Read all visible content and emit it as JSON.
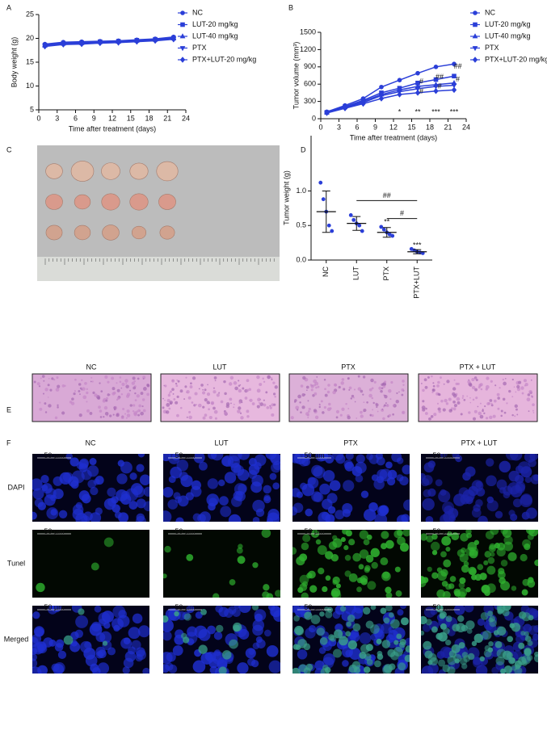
{
  "chart_data": [
    {
      "type": "line",
      "panel_label": "A",
      "xlabel": "Time after treatment (days)",
      "ylabel": "Body weight (g)",
      "xlim": [
        0,
        24
      ],
      "xticks": [
        0,
        3,
        6,
        9,
        12,
        15,
        18,
        21,
        24
      ],
      "ylim": [
        5,
        25
      ],
      "yticks": [
        5,
        10,
        15,
        20,
        25
      ],
      "x": [
        1,
        4,
        7,
        10,
        13,
        16,
        19,
        22
      ],
      "series": [
        {
          "name": "NC",
          "color": "#2b3fd8",
          "marker": "circle",
          "values": [
            18.8,
            19.2,
            19.3,
            19.4,
            19.5,
            19.7,
            19.9,
            20.3
          ]
        },
        {
          "name": "LUT-20 mg/kg",
          "color": "#2b3fd8",
          "marker": "square",
          "values": [
            18.6,
            19.0,
            19.1,
            19.3,
            19.4,
            19.6,
            19.8,
            20.1
          ]
        },
        {
          "name": "LUT-40 mg/kg",
          "color": "#2b3fd8",
          "marker": "triangle-up",
          "values": [
            18.5,
            18.9,
            19.0,
            19.2,
            19.3,
            19.5,
            19.7,
            20.0
          ]
        },
        {
          "name": "PTX",
          "color": "#2b3fd8",
          "marker": "triangle-down",
          "values": [
            18.4,
            18.8,
            18.9,
            19.1,
            19.2,
            19.4,
            19.6,
            19.9
          ]
        },
        {
          "name": "PTX+LUT-20 mg/kg",
          "color": "#2b3fd8",
          "marker": "diamond",
          "values": [
            18.3,
            18.7,
            18.8,
            19.0,
            19.1,
            19.3,
            19.5,
            19.8
          ]
        }
      ]
    },
    {
      "type": "line",
      "panel_label": "B",
      "xlabel": "Time after treatment (days)",
      "ylabel": "Tumor volume (mm³)",
      "xlim": [
        0,
        24
      ],
      "xticks": [
        0,
        3,
        6,
        9,
        12,
        15,
        18,
        21,
        24
      ],
      "ylim": [
        0,
        1500
      ],
      "yticks": [
        0,
        300,
        600,
        900,
        1200,
        1500
      ],
      "x": [
        1,
        4,
        7,
        10,
        13,
        16,
        19,
        22
      ],
      "series": [
        {
          "name": "NC",
          "color": "#2b3fd8",
          "marker": "circle",
          "values": [
            120,
            230,
            350,
            550,
            670,
            790,
            900,
            950
          ]
        },
        {
          "name": "LUT-20 mg/kg",
          "color": "#2b3fd8",
          "marker": "square",
          "values": [
            110,
            210,
            320,
            450,
            530,
            620,
            680,
            740
          ]
        },
        {
          "name": "LUT-40 mg/kg",
          "color": "#2b3fd8",
          "marker": "triangle-up",
          "values": [
            110,
            200,
            300,
            420,
            500,
            560,
            590,
            620
          ]
        },
        {
          "name": "PTX",
          "color": "#2b3fd8",
          "marker": "triangle-down",
          "values": [
            100,
            190,
            280,
            400,
            470,
            520,
            560,
            580
          ]
        },
        {
          "name": "PTX+LUT-20 mg/kg",
          "color": "#2b3fd8",
          "marker": "diamond",
          "values": [
            100,
            180,
            260,
            350,
            420,
            450,
            480,
            500
          ]
        }
      ],
      "annotations": [
        {
          "text": "*",
          "x": 13,
          "y": 110
        },
        {
          "text": "**",
          "x": 16,
          "y": 110
        },
        {
          "text": "***",
          "x": 19,
          "y": 110
        },
        {
          "text": "***",
          "x": 22,
          "y": 110
        },
        {
          "text": "#",
          "x": 16.6,
          "y": 640
        },
        {
          "text": "#",
          "x": 16.6,
          "y": 470
        },
        {
          "text": "##",
          "x": 19.6,
          "y": 720
        },
        {
          "text": "#",
          "x": 19.6,
          "y": 560
        },
        {
          "text": "##",
          "x": 22.6,
          "y": 900
        },
        {
          "text": "#",
          "x": 22.6,
          "y": 680
        }
      ]
    },
    {
      "type": "dot",
      "panel_label": "D",
      "ylabel": "Tumor weight (g)",
      "color": "#2b3fd8",
      "categories": [
        "NC",
        "LUT",
        "PTX",
        "PTX+LUT"
      ],
      "ylim": [
        0,
        1.8
      ],
      "yticks": [
        {
          "value": 0,
          "label": "0.0"
        },
        {
          "value": 0.5,
          "label": "0.5"
        },
        {
          "value": 1,
          "label": "1.0"
        }
      ],
      "points": [
        [
          1.12,
          0.88,
          0.7,
          0.5,
          0.42
        ],
        [
          0.65,
          0.58,
          0.53,
          0.5,
          0.42
        ],
        [
          0.48,
          0.44,
          0.4,
          0.37,
          0.35
        ],
        [
          0.16,
          0.14,
          0.12,
          0.11,
          0.1
        ]
      ],
      "means": [
        0.7,
        0.53,
        0.4,
        0.12
      ],
      "sds": [
        0.3,
        0.1,
        0.07,
        0.03
      ],
      "annotations": [
        {
          "text": "**",
          "category": 2,
          "y": 0.55
        },
        {
          "text": "***",
          "category": 3,
          "y": 0.21
        }
      ],
      "brackets": [
        {
          "text": "##",
          "from": 1,
          "to": 3,
          "y": 0.86
        },
        {
          "text": "#",
          "from": 2,
          "to": 3,
          "y": 0.6
        }
      ]
    }
  ],
  "panels": {
    "C": {
      "label": "C"
    },
    "E": {
      "label": "E",
      "columns": [
        "NC",
        "LUT",
        "PTX",
        "PTX + LUT"
      ]
    },
    "F": {
      "label": "F",
      "columns": [
        "NC",
        "LUT",
        "PTX",
        "PTX + LUT"
      ],
      "rows": [
        {
          "label": "DAPI",
          "color": "#2233dd"
        },
        {
          "label": "Tunel",
          "color": "#22bb22"
        },
        {
          "label": "Merged",
          "color": "#dd2222"
        }
      ],
      "scale_bar": "50 µm"
    }
  }
}
